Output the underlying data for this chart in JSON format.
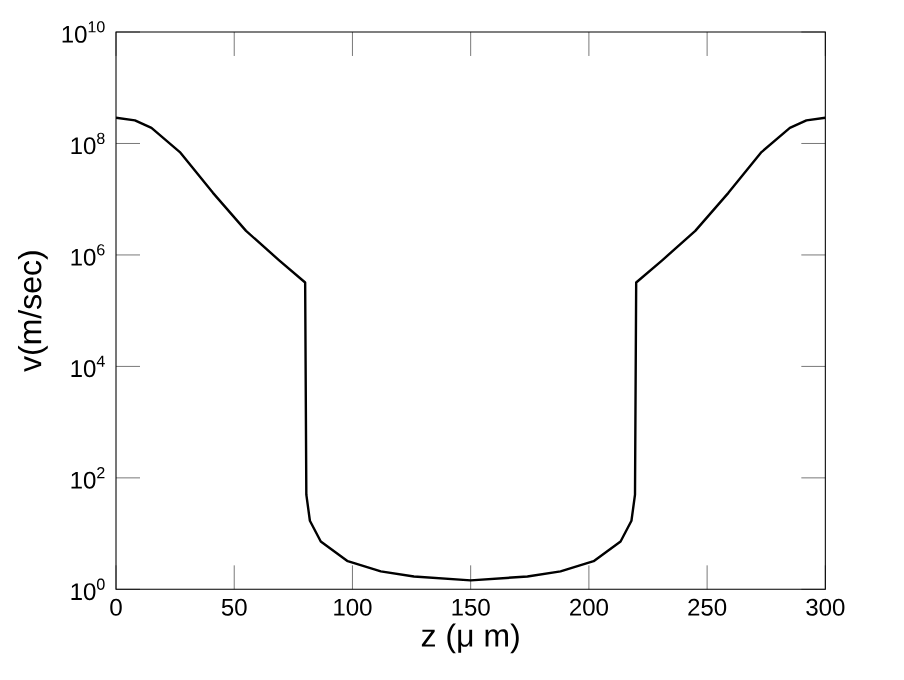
{
  "chart_data": {
    "type": "line",
    "xlabel": "z (μ m)",
    "ylabel": "v(m/sec)",
    "log": "y",
    "color": "#000000",
    "marker": "none",
    "line_style": "solid",
    "xlim": [
      0,
      300
    ],
    "ylim": [
      1,
      10000000000
    ],
    "xticks": [
      0,
      50,
      100,
      150,
      200,
      250,
      300
    ],
    "yticks": [
      {
        "value": 1,
        "label": "10$^{0}$"
      },
      {
        "value": 100,
        "label": "10$^{2}$"
      },
      {
        "value": 10000,
        "label": "10$^{4}$"
      },
      {
        "value": 1000000,
        "label": "10$^{6}$"
      },
      {
        "value": 100000000,
        "label": "10$^{8}$"
      },
      {
        "value": 10000000000,
        "label": "10$^{10}$"
      }
    ],
    "x": [
      0,
      8,
      15,
      27,
      41,
      55,
      69,
      80,
      80.5,
      82,
      86.6,
      98,
      112,
      126,
      150,
      174,
      188,
      202,
      213.4,
      218,
      219.5,
      220,
      231,
      245,
      259,
      273,
      285,
      292,
      300
    ],
    "values": [
      290000000,
      260000000,
      190000000,
      70000000,
      13000000,
      2700000,
      800000,
      320000,
      50,
      17,
      7.2,
      3.2,
      2.1,
      1.7,
      1.45,
      1.7,
      2.1,
      3.2,
      7.2,
      17,
      50,
      320000,
      800000,
      2700000,
      13000000,
      70000000,
      190000000,
      260000000,
      290000000
    ]
  }
}
